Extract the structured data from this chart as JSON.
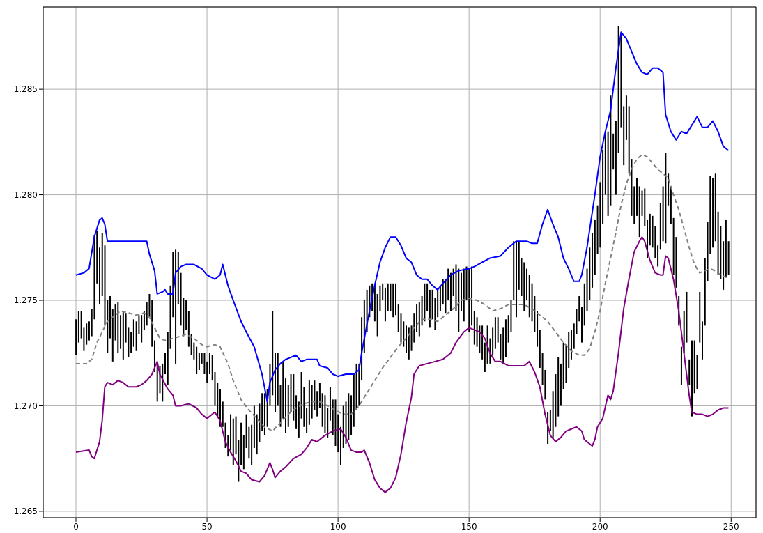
{
  "chart_data": {
    "type": "bar",
    "xlim": [
      -12.5,
      259.5
    ],
    "ylim": [
      1.2647,
      1.2889
    ],
    "xticks": [
      0,
      50,
      100,
      150,
      200,
      250
    ],
    "yticks": [
      1.265,
      {
        "value": 1.27,
        "label": "1.270"
      },
      1.275,
      {
        "value": 1.28,
        "label": "1.280"
      },
      1.285
    ],
    "grid": true,
    "series": [
      {
        "color": "#000000",
        "x": [
          0,
          1,
          2,
          3,
          4,
          5,
          6,
          7,
          8,
          9,
          10,
          11,
          12,
          13,
          14,
          15,
          16,
          17,
          18,
          19,
          20,
          21,
          22,
          23,
          24,
          25,
          26,
          27,
          28,
          29,
          30,
          31,
          32,
          33,
          34,
          35,
          36,
          37,
          38,
          39,
          40,
          41,
          42,
          43,
          44,
          45,
          46,
          47,
          48,
          49,
          50,
          51,
          52,
          53,
          54,
          55,
          56,
          57,
          58,
          59,
          60,
          61,
          62,
          63,
          64,
          65,
          66,
          67,
          68,
          69,
          70,
          71,
          72,
          73,
          74,
          75,
          76,
          77,
          78,
          79,
          80,
          81,
          82,
          83,
          84,
          85,
          86,
          87,
          88,
          89,
          90,
          91,
          92,
          93,
          94,
          95,
          96,
          97,
          98,
          99,
          100,
          101,
          102,
          103,
          104,
          105,
          106,
          107,
          108,
          109,
          110,
          111,
          112,
          113,
          114,
          115,
          116,
          117,
          118,
          119,
          120,
          121,
          122,
          123,
          124,
          125,
          126,
          127,
          128,
          129,
          130,
          131,
          132,
          133,
          134,
          135,
          136,
          137,
          138,
          139,
          140,
          141,
          142,
          143,
          144,
          145,
          146,
          147,
          148,
          149,
          150,
          151,
          152,
          153,
          154,
          155,
          156,
          157,
          158,
          159,
          160,
          161,
          162,
          163,
          164,
          165,
          166,
          167,
          168,
          169,
          170,
          171,
          172,
          173,
          174,
          175,
          176,
          177,
          178,
          179,
          180,
          181,
          182,
          183,
          184,
          185,
          186,
          187,
          188,
          189,
          190,
          191,
          192,
          193,
          194,
          195,
          196,
          197,
          198,
          199,
          200,
          201,
          202,
          203,
          204,
          205,
          206,
          207,
          208,
          209,
          210,
          211,
          212,
          213,
          214,
          215,
          216,
          217,
          218,
          219,
          220,
          221,
          222,
          223,
          224,
          225,
          226,
          227,
          228,
          229,
          230,
          231,
          232,
          233,
          234,
          235,
          236,
          237,
          238,
          239,
          240,
          241,
          242,
          243,
          244,
          245,
          246,
          247,
          248,
          249
        ],
        "base": [
          1.2724,
          1.273,
          1.2732,
          1.2726,
          1.2729,
          1.2731,
          1.2733,
          1.2741,
          1.2758,
          1.2748,
          1.2752,
          1.2738,
          1.2725,
          1.2732,
          1.2721,
          1.2731,
          1.2725,
          1.2727,
          1.2722,
          1.273,
          1.2723,
          1.2725,
          1.2728,
          1.2726,
          1.2734,
          1.273,
          1.2736,
          1.2738,
          1.2742,
          1.2728,
          1.2716,
          1.2702,
          1.2706,
          1.2702,
          1.2715,
          1.271,
          1.2727,
          1.2742,
          1.272,
          1.2748,
          1.2738,
          1.2733,
          1.2736,
          1.2728,
          1.2724,
          1.2722,
          1.2715,
          1.2717,
          1.272,
          1.2715,
          1.2711,
          1.2715,
          1.2712,
          1.27,
          1.2695,
          1.269,
          1.269,
          1.268,
          1.2676,
          1.2679,
          1.2672,
          1.2677,
          1.2664,
          1.2672,
          1.267,
          1.268,
          1.2675,
          1.2672,
          1.268,
          1.2677,
          1.2683,
          1.2688,
          1.2686,
          1.269,
          1.27,
          1.2705,
          1.2697,
          1.27,
          1.269,
          1.2694,
          1.2687,
          1.269,
          1.2697,
          1.2693,
          1.2689,
          1.2685,
          1.2694,
          1.269,
          1.2687,
          1.2691,
          1.2694,
          1.2698,
          1.2695,
          1.2699,
          1.269,
          1.2687,
          1.2685,
          1.2693,
          1.2686,
          1.2681,
          1.2678,
          1.2672,
          1.268,
          1.2682,
          1.2684,
          1.2686,
          1.269,
          1.2698,
          1.27,
          1.2712,
          1.2725,
          1.2735,
          1.2742,
          1.2745,
          1.274,
          1.2733,
          1.2745,
          1.275,
          1.274,
          1.2745,
          1.2745,
          1.2742,
          1.2743,
          1.2735,
          1.273,
          1.2728,
          1.2725,
          1.2722,
          1.2726,
          1.273,
          1.2735,
          1.2733,
          1.2738,
          1.274,
          1.2745,
          1.2737,
          1.2741,
          1.2736,
          1.2742,
          1.2745,
          1.2748,
          1.2744,
          1.275,
          1.2745,
          1.2752,
          1.2745,
          1.2735,
          1.2745,
          1.274,
          1.275,
          1.2735,
          1.2738,
          1.2729,
          1.2728,
          1.2725,
          1.2722,
          1.2716,
          1.272,
          1.272,
          1.2724,
          1.2727,
          1.273,
          1.2722,
          1.272,
          1.2723,
          1.273,
          1.2735,
          1.275,
          1.2742,
          1.2755,
          1.2752,
          1.2745,
          1.275,
          1.2742,
          1.274,
          1.2735,
          1.2728,
          1.2718,
          1.271,
          1.2703,
          1.2682,
          1.2688,
          1.2685,
          1.269,
          1.2695,
          1.27,
          1.2708,
          1.2711,
          1.2718,
          1.2722,
          1.2727,
          1.2734,
          1.274,
          1.273,
          1.2738,
          1.2745,
          1.275,
          1.2756,
          1.2762,
          1.2772,
          1.2775,
          1.2786,
          1.28,
          1.279,
          1.2795,
          1.2812,
          1.28,
          1.282,
          1.2832,
          1.2814,
          1.2826,
          1.281,
          1.279,
          1.2786,
          1.279,
          1.278,
          1.279,
          1.2785,
          1.277,
          1.2776,
          1.2775,
          1.277,
          1.2766,
          1.2774,
          1.2778,
          1.2777,
          1.2795,
          1.2786,
          1.2762,
          1.2756,
          1.2738,
          1.271,
          1.2725,
          1.273,
          1.271,
          1.2695,
          1.2706,
          1.2708,
          1.273,
          1.2722,
          1.2738,
          1.2759,
          1.2772,
          1.2775,
          1.2778,
          1.2762,
          1.276,
          1.2755,
          1.2761,
          1.2762
        ],
        "values": [
          0.0017,
          0.0015,
          0.0013,
          0.0011,
          0.001,
          0.0009,
          0.0013,
          0.004,
          0.0025,
          0.0027,
          0.003,
          0.0038,
          0.0025,
          0.002,
          0.0025,
          0.0017,
          0.0024,
          0.0016,
          0.0023,
          0.0014,
          0.0014,
          0.001,
          0.0013,
          0.0014,
          0.0009,
          0.0013,
          0.0009,
          0.0011,
          0.0011,
          0.0022,
          0.0015,
          0.0018,
          0.0013,
          0.0018,
          0.001,
          0.0025,
          0.003,
          0.0031,
          0.0054,
          0.0025,
          0.0025,
          0.0018,
          0.0014,
          0.0017,
          0.001,
          0.0008,
          0.0013,
          0.0008,
          0.0005,
          0.001,
          0.001,
          0.001,
          0.0012,
          0.0016,
          0.0016,
          0.0018,
          0.0012,
          0.0012,
          0.001,
          0.0017,
          0.0022,
          0.0018,
          0.002,
          0.002,
          0.0016,
          0.0016,
          0.0015,
          0.0019,
          0.002,
          0.0019,
          0.0018,
          0.0018,
          0.002,
          0.0018,
          0.002,
          0.004,
          0.0028,
          0.0025,
          0.002,
          0.0027,
          0.0026,
          0.002,
          0.0018,
          0.0022,
          0.0016,
          0.0017,
          0.0022,
          0.0019,
          0.0012,
          0.0021,
          0.0016,
          0.0014,
          0.0012,
          0.0012,
          0.0016,
          0.0018,
          0.0014,
          0.0016,
          0.0017,
          0.0022,
          0.0018,
          0.0018,
          0.002,
          0.002,
          0.0022,
          0.0019,
          0.0025,
          0.0022,
          0.002,
          0.003,
          0.0025,
          0.002,
          0.0015,
          0.0013,
          0.0018,
          0.002,
          0.0012,
          0.0008,
          0.0016,
          0.0013,
          0.0013,
          0.0016,
          0.0015,
          0.0013,
          0.0014,
          0.0012,
          0.0013,
          0.0015,
          0.0012,
          0.0014,
          0.0013,
          0.0016,
          0.0014,
          0.0018,
          0.0013,
          0.0018,
          0.0014,
          0.0015,
          0.0013,
          0.0012,
          0.0012,
          0.0016,
          0.0015,
          0.0018,
          0.0013,
          0.0022,
          0.003,
          0.0018,
          0.0025,
          0.0016,
          0.003,
          0.0028,
          0.0016,
          0.0014,
          0.0013,
          0.0016,
          0.0014,
          0.0018,
          0.0012,
          0.0013,
          0.0015,
          0.0012,
          0.0012,
          0.0017,
          0.0018,
          0.0013,
          0.0015,
          0.0028,
          0.0036,
          0.0023,
          0.0018,
          0.0023,
          0.0015,
          0.002,
          0.0018,
          0.0017,
          0.0017,
          0.0018,
          0.0015,
          0.0014,
          0.0015,
          0.001,
          0.0022,
          0.0025,
          0.0028,
          0.002,
          0.0022,
          0.0018,
          0.0017,
          0.0014,
          0.0012,
          0.0012,
          0.0012,
          0.0017,
          0.002,
          0.002,
          0.0025,
          0.0026,
          0.0026,
          0.0023,
          0.0031,
          0.0035,
          0.003,
          0.004,
          0.0052,
          0.0017,
          0.0035,
          0.006,
          0.0044,
          0.0028,
          0.0021,
          0.0032,
          0.0027,
          0.0018,
          0.0018,
          0.0024,
          0.0012,
          0.0018,
          0.0018,
          0.0015,
          0.0015,
          0.0015,
          0.001,
          0.0022,
          0.0026,
          0.0043,
          0.0015,
          0.0018,
          0.0027,
          0.0024,
          0.0014,
          0.0018,
          0.002,
          0.0024,
          0.0012,
          0.0036,
          0.0025,
          0.0016,
          0.0024,
          0.0018,
          0.0032,
          0.0028,
          0.0037,
          0.0033,
          0.0032,
          0.003,
          0.0025,
          0.0023,
          0.0027,
          0.0016
        ]
      },
      {
        "type": "line",
        "color": "#0000ff",
        "line_style": "solid",
        "x": [
          0,
          3,
          5,
          7,
          9,
          10,
          11,
          12,
          15,
          20,
          27,
          28,
          30,
          31,
          33,
          34,
          35,
          37,
          38,
          40,
          42,
          45,
          48,
          50,
          53,
          55,
          56,
          58,
          60,
          63,
          65,
          68,
          71,
          73,
          74,
          76,
          78,
          80,
          84,
          86,
          88,
          92,
          93,
          96,
          98,
          100,
          103,
          106,
          108,
          109,
          112,
          114,
          116,
          118,
          120,
          122,
          124,
          126,
          128,
          130,
          132,
          134,
          136,
          138,
          140,
          143,
          146,
          150,
          152,
          155,
          158,
          162,
          165,
          168,
          172,
          174,
          176,
          178,
          180,
          182,
          184,
          186,
          188,
          190,
          192,
          193,
          195,
          198,
          200,
          202,
          204,
          206,
          208,
          210,
          212,
          214,
          216,
          218,
          220,
          222,
          224,
          225,
          227,
          229,
          231,
          233,
          235,
          237,
          239,
          241,
          243,
          245,
          247,
          249
        ],
        "values": [
          1.2762,
          1.2763,
          1.2765,
          1.278,
          1.2788,
          1.2789,
          1.2786,
          1.2778,
          1.2778,
          1.2778,
          1.2778,
          1.2772,
          1.2764,
          1.2753,
          1.2754,
          1.2755,
          1.2753,
          1.2753,
          1.2763,
          1.2766,
          1.2767,
          1.2767,
          1.2765,
          1.2762,
          1.276,
          1.2762,
          1.2767,
          1.2757,
          1.275,
          1.274,
          1.2735,
          1.2728,
          1.2715,
          1.2702,
          1.2711,
          1.2717,
          1.272,
          1.2722,
          1.2724,
          1.2721,
          1.2722,
          1.2722,
          1.2719,
          1.2718,
          1.2715,
          1.2714,
          1.2715,
          1.2715,
          1.2717,
          1.2725,
          1.2745,
          1.2757,
          1.2768,
          1.2775,
          1.278,
          1.278,
          1.2776,
          1.277,
          1.2768,
          1.2762,
          1.276,
          1.276,
          1.2757,
          1.2755,
          1.2758,
          1.2762,
          1.2764,
          1.2765,
          1.2766,
          1.2768,
          1.277,
          1.2771,
          1.2775,
          1.2778,
          1.2778,
          1.2777,
          1.2777,
          1.2786,
          1.2793,
          1.2786,
          1.278,
          1.277,
          1.2765,
          1.2759,
          1.2759,
          1.2762,
          1.2775,
          1.28,
          1.2818,
          1.283,
          1.284,
          1.286,
          1.2877,
          1.2874,
          1.2868,
          1.2862,
          1.2858,
          1.2857,
          1.286,
          1.286,
          1.2858,
          1.2838,
          1.283,
          1.2826,
          1.283,
          1.2829,
          1.2833,
          1.2837,
          1.2832,
          1.2832,
          1.2835,
          1.283,
          1.2823,
          1.2821
        ]
      },
      {
        "type": "line",
        "color": "#800080",
        "line_style": "solid",
        "x": [
          0,
          5,
          6,
          7,
          9,
          10,
          11,
          12,
          14,
          16,
          18,
          20,
          23,
          25,
          27,
          29,
          31,
          32,
          35,
          37,
          38,
          40,
          43,
          46,
          48,
          50,
          52,
          53,
          55,
          57,
          59,
          61,
          63,
          65,
          67,
          70,
          72,
          74,
          75,
          76,
          78,
          80,
          83,
          86,
          88,
          90,
          92,
          95,
          98,
          101,
          103,
          105,
          107,
          109,
          110,
          112,
          114,
          116,
          118,
          120,
          122,
          124,
          126,
          128,
          129,
          131,
          134,
          137,
          140,
          143,
          145,
          148,
          150,
          152,
          154,
          156,
          158,
          160,
          162,
          165,
          168,
          171,
          173,
          175,
          177,
          179,
          181,
          183,
          185,
          187,
          189,
          191,
          193,
          194,
          196,
          197,
          198,
          199,
          201,
          203,
          204,
          205,
          207,
          209,
          211,
          213,
          215,
          216,
          217,
          219,
          221,
          223,
          224,
          225,
          226,
          228,
          230,
          232,
          234,
          235,
          237,
          239,
          241,
          243,
          245,
          247,
          249
        ],
        "values": [
          1.2678,
          1.2679,
          1.2676,
          1.2675,
          1.2683,
          1.2693,
          1.2709,
          1.2711,
          1.271,
          1.2712,
          1.2711,
          1.2709,
          1.2709,
          1.271,
          1.2712,
          1.2715,
          1.2721,
          1.2715,
          1.2708,
          1.2705,
          1.27,
          1.27,
          1.2701,
          1.2699,
          1.2696,
          1.2694,
          1.2696,
          1.2697,
          1.2693,
          1.2683,
          1.2678,
          1.2674,
          1.2669,
          1.2668,
          1.2665,
          1.2664,
          1.2667,
          1.2673,
          1.267,
          1.2666,
          1.2669,
          1.2671,
          1.2675,
          1.2677,
          1.268,
          1.2684,
          1.2683,
          1.2686,
          1.2688,
          1.2689,
          1.2685,
          1.2679,
          1.2678,
          1.2678,
          1.2679,
          1.2673,
          1.2665,
          1.2661,
          1.2659,
          1.2661,
          1.2666,
          1.2677,
          1.2692,
          1.2704,
          1.2715,
          1.2719,
          1.272,
          1.2721,
          1.2722,
          1.2725,
          1.273,
          1.2735,
          1.2737,
          1.2736,
          1.2735,
          1.2732,
          1.2725,
          1.2721,
          1.2721,
          1.2719,
          1.2719,
          1.2719,
          1.2721,
          1.2716,
          1.2709,
          1.2696,
          1.2686,
          1.2683,
          1.2685,
          1.2688,
          1.2689,
          1.269,
          1.2688,
          1.2684,
          1.2682,
          1.2681,
          1.2684,
          1.269,
          1.2694,
          1.2705,
          1.2703,
          1.2707,
          1.2725,
          1.2746,
          1.276,
          1.2773,
          1.2778,
          1.278,
          1.2778,
          1.2769,
          1.2763,
          1.2762,
          1.2762,
          1.2771,
          1.277,
          1.276,
          1.2745,
          1.2725,
          1.2705,
          1.2697,
          1.2696,
          1.2696,
          1.2695,
          1.2696,
          1.2698,
          1.2699,
          1.2699
        ]
      },
      {
        "type": "line",
        "color": "#808080",
        "line_style": "dashed",
        "x": [
          0,
          4,
          6,
          8,
          10,
          12,
          14,
          17,
          20,
          23,
          26,
          28,
          30,
          32,
          34,
          37,
          40,
          42,
          45,
          48,
          50,
          53,
          55,
          58,
          60,
          63,
          66,
          69,
          72,
          75,
          78,
          81,
          84,
          87,
          90,
          93,
          96,
          99,
          102,
          105,
          108,
          111,
          114,
          117,
          120,
          123,
          126,
          129,
          132,
          135,
          138,
          141,
          144,
          147,
          150,
          153,
          156,
          159,
          162,
          165,
          168,
          171,
          174,
          177,
          180,
          183,
          186,
          189,
          192,
          194,
          196,
          198,
          200,
          202,
          204,
          206,
          208,
          210,
          212,
          214,
          216,
          218,
          220,
          222,
          224,
          226,
          228,
          230,
          232,
          234,
          236,
          238,
          240,
          242,
          244,
          246,
          248,
          249
        ],
        "values": [
          1.272,
          1.272,
          1.2722,
          1.273,
          1.2735,
          1.274,
          1.2742,
          1.2745,
          1.2744,
          1.2743,
          1.2744,
          1.2742,
          1.2737,
          1.2732,
          1.2731,
          1.2732,
          1.2733,
          1.2734,
          1.2732,
          1.2729,
          1.2728,
          1.2729,
          1.2728,
          1.272,
          1.2712,
          1.2703,
          1.2698,
          1.2694,
          1.269,
          1.2688,
          1.2692,
          1.2696,
          1.2699,
          1.2701,
          1.2702,
          1.2702,
          1.27,
          1.2698,
          1.2696,
          1.2696,
          1.27,
          1.2706,
          1.2712,
          1.2718,
          1.2723,
          1.2728,
          1.2732,
          1.2737,
          1.2741,
          1.2741,
          1.274,
          1.2743,
          1.2746,
          1.275,
          1.2751,
          1.275,
          1.2748,
          1.2745,
          1.2746,
          1.2748,
          1.2748,
          1.2748,
          1.2746,
          1.2743,
          1.274,
          1.2735,
          1.273,
          1.2726,
          1.2724,
          1.2724,
          1.2727,
          1.2735,
          1.2745,
          1.2758,
          1.277,
          1.2782,
          1.2795,
          1.2805,
          1.2812,
          1.2817,
          1.2819,
          1.2818,
          1.2815,
          1.2812,
          1.281,
          1.2808,
          1.28,
          1.2793,
          1.2784,
          1.2775,
          1.2767,
          1.2763,
          1.2764,
          1.2765,
          1.2764,
          1.2762,
          1.2761,
          1.2761
        ]
      }
    ]
  }
}
